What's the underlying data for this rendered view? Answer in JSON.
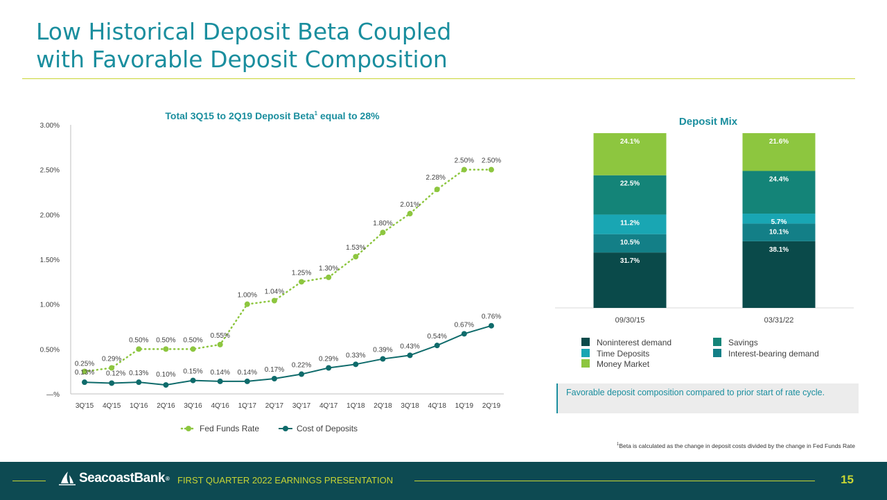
{
  "header": {
    "title_line1": "Low Historical Deposit Beta Coupled",
    "title_line2": "with Favorable Deposit Composition"
  },
  "chart_data": [
    {
      "type": "line",
      "title": "Total 3Q15 to 2Q19 Deposit Beta",
      "title_sup": "1",
      "title_suffix": " equal to 28%",
      "categories": [
        "3Q'15",
        "4Q'15",
        "1Q'16",
        "2Q'16",
        "3Q'16",
        "4Q'16",
        "1Q'17",
        "2Q'17",
        "3Q'17",
        "4Q'17",
        "1Q'18",
        "2Q'18",
        "3Q'18",
        "4Q'18",
        "1Q'19",
        "2Q'19"
      ],
      "yticks": [
        {
          "value": 0,
          "label": "—%"
        },
        {
          "value": 0.5,
          "label": "0.50%"
        },
        {
          "value": 1.0,
          "label": "1.00%"
        },
        {
          "value": 1.5,
          "label": "1.50%"
        },
        {
          "value": 2.0,
          "label": "2.00%"
        },
        {
          "value": 2.5,
          "label": "2.50%"
        },
        {
          "value": 3.0,
          "label": "3.00%"
        }
      ],
      "ylim": [
        0,
        3.0
      ],
      "grid": "none",
      "legend": "bottom",
      "series": [
        {
          "name": "Fed Funds Rate",
          "style": "dotted",
          "color": "#8dc63f",
          "values": [
            0.25,
            0.29,
            0.5,
            0.5,
            0.5,
            0.55,
            1.0,
            1.04,
            1.25,
            1.3,
            1.53,
            1.8,
            2.01,
            2.28,
            2.5,
            2.5
          ],
          "labels": [
            "0.25%",
            "0.29%",
            "0.50%",
            "0.50%",
            "0.50%",
            "0.55%",
            "1.00%",
            "1.04%",
            "1.25%",
            "1.30%",
            "1.53%",
            "1.80%",
            "2.01%",
            "2.28%",
            "2.50%",
            "2.50%"
          ]
        },
        {
          "name": "Cost of Deposits",
          "style": "solid",
          "color": "#0f6b6b",
          "values": [
            0.13,
            0.12,
            0.13,
            0.1,
            0.15,
            0.14,
            0.14,
            0.17,
            0.22,
            0.29,
            0.33,
            0.39,
            0.43,
            0.54,
            0.67,
            0.76
          ],
          "labels": [
            "0.13%",
            "0.12%",
            "0.13%",
            "0.10%",
            "0.15%",
            "0.14%",
            "0.14%",
            "0.17%",
            "0.22%",
            "0.29%",
            "0.33%",
            "0.39%",
            "0.43%",
            "0.54%",
            "0.67%",
            "0.76%"
          ]
        }
      ]
    },
    {
      "type": "bar",
      "stacked": true,
      "title": "Deposit Mix",
      "categories": [
        "09/30/15",
        "03/31/22"
      ],
      "legend": "bottom",
      "series": [
        {
          "name": "Noninterest demand",
          "color": "#0a4a4a",
          "values": [
            31.7,
            38.1
          ],
          "labels": [
            "31.7%",
            "38.1%"
          ]
        },
        {
          "name": "Interest-bearing demand",
          "color": "#137f87",
          "values": [
            10.5,
            10.1
          ],
          "labels": [
            "10.5%",
            "10.1%"
          ]
        },
        {
          "name": "Time Deposits",
          "color": "#19a6b3",
          "values": [
            11.2,
            5.7
          ],
          "labels": [
            "11.2%",
            "5.7%"
          ]
        },
        {
          "name": "Savings",
          "color": "#148478",
          "values": [
            22.5,
            24.4
          ],
          "labels": [
            "22.5%",
            "24.4%"
          ]
        },
        {
          "name": "Money Market",
          "color": "#8dc63f",
          "values": [
            24.1,
            21.6
          ],
          "labels": [
            "24.1%",
            "21.6%"
          ]
        }
      ],
      "legend_order": [
        "Noninterest demand",
        "Savings",
        "Time Deposits",
        "Interest-bearing demand",
        "Money Market"
      ]
    }
  ],
  "callout": {
    "text": "Favorable deposit composition compared to prior start of rate cycle."
  },
  "footnote": {
    "sup": "1",
    "text": "Beta is calculated as the change in deposit costs divided by the change in Fed Funds Rate"
  },
  "footer": {
    "logo_text": "SeacoastBank",
    "logo_tm": "®",
    "presentation": "FIRST QUARTER 2022 EARNINGS PRESENTATION",
    "page_number": "15"
  },
  "colors": {
    "title": "#1a8e9e",
    "accent": "#c8d534",
    "footer_bg": "#0d4a52"
  }
}
